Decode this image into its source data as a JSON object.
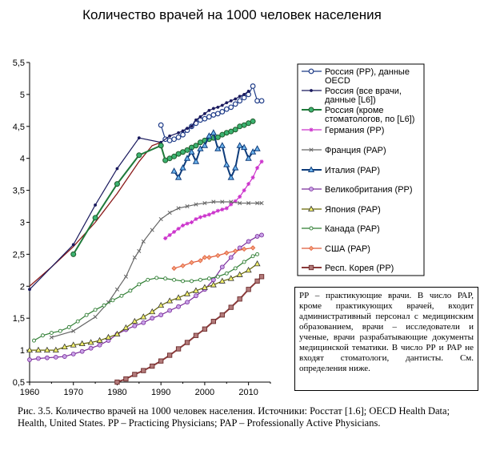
{
  "title": "Количество врачей на 1000 человек населения",
  "note": "РР – практикующие врачи. В число РАР, кроме практикующих врачей, входит административный персонал с медицинским образованием, врачи – исследователи и ученые, врачи разрабатывающие документы медицинской тематики. В число РР и РАР не входят стоматологи, дантисты. См. определения ниже.",
  "caption": "Рис. 3.5. Количество врачей на 1000 человек населения. Источники: Росстат [1.6]; OECD Health Data; Health, United States. PP – Practicing Physicians; PAP – Professionally Active Physicians.",
  "chart_data": {
    "type": "line",
    "xlim": [
      1960,
      2015
    ],
    "ylim": [
      0.5,
      5.5
    ],
    "x_ticks": [
      1960,
      1970,
      1980,
      1990,
      2000,
      2010
    ],
    "y_ticks": [
      "0,5",
      "1",
      "1,5",
      "2",
      "2,5",
      "3",
      "3,5",
      "4",
      "4,5",
      "5",
      "5,5"
    ],
    "grid": false,
    "legend_position": "right",
    "series": [
      {
        "name": "Россия (РР), данные OECD",
        "color": "#1f3c88",
        "marker": "circle-open",
        "points": [
          [
            1990,
            4.52
          ],
          [
            1991,
            4.3
          ],
          [
            1992,
            4.28
          ],
          [
            1993,
            4.3
          ],
          [
            1994,
            4.33
          ],
          [
            1995,
            4.37
          ],
          [
            1996,
            4.44
          ],
          [
            1997,
            4.5
          ],
          [
            1998,
            4.55
          ],
          [
            1999,
            4.6
          ],
          [
            2000,
            4.62
          ],
          [
            2001,
            4.65
          ],
          [
            2002,
            4.68
          ],
          [
            2003,
            4.7
          ],
          [
            2004,
            4.73
          ],
          [
            2005,
            4.77
          ],
          [
            2006,
            4.8
          ],
          [
            2007,
            4.85
          ],
          [
            2008,
            4.9
          ],
          [
            2009,
            4.95
          ],
          [
            2010,
            5.0
          ],
          [
            2011,
            5.13
          ],
          [
            2012,
            4.9
          ],
          [
            2013,
            4.9
          ]
        ]
      },
      {
        "name": "Россия (все врачи, данные [1.6])",
        "color": "#1a1a5e",
        "marker": "dot",
        "points": [
          [
            1960,
            1.95
          ],
          [
            1970,
            2.65
          ],
          [
            1975,
            3.27
          ],
          [
            1980,
            3.84
          ],
          [
            1985,
            4.32
          ],
          [
            1990,
            4.25
          ],
          [
            1992,
            4.35
          ],
          [
            1994,
            4.4
          ],
          [
            1995,
            4.43
          ],
          [
            1996,
            4.47
          ],
          [
            1997,
            4.5
          ],
          [
            1998,
            4.6
          ],
          [
            1999,
            4.65
          ],
          [
            2000,
            4.7
          ],
          [
            2001,
            4.75
          ],
          [
            2002,
            4.78
          ],
          [
            2003,
            4.8
          ],
          [
            2004,
            4.83
          ],
          [
            2005,
            4.87
          ],
          [
            2006,
            4.9
          ],
          [
            2007,
            4.93
          ],
          [
            2008,
            4.97
          ],
          [
            2009,
            5.0
          ],
          [
            2010,
            5.05
          ]
        ]
      },
      {
        "name": "Россия (кроме стоматологов, по [1.6])",
        "color": "#1f7a3a",
        "marker": "circle-green",
        "points": [
          [
            1970,
            2.5
          ],
          [
            1975,
            3.07
          ],
          [
            1980,
            3.6
          ],
          [
            1985,
            4.05
          ],
          [
            1990,
            4.2
          ],
          [
            1991,
            3.97
          ],
          [
            1992,
            4.0
          ],
          [
            1993,
            4.03
          ],
          [
            1994,
            4.07
          ],
          [
            1995,
            4.1
          ],
          [
            1996,
            4.13
          ],
          [
            1997,
            4.17
          ],
          [
            1998,
            4.2
          ],
          [
            1999,
            4.25
          ],
          [
            2000,
            4.28
          ],
          [
            2001,
            4.3
          ],
          [
            2002,
            4.32
          ],
          [
            2003,
            4.33
          ],
          [
            2004,
            4.37
          ],
          [
            2005,
            4.4
          ],
          [
            2006,
            4.42
          ],
          [
            2007,
            4.45
          ],
          [
            2008,
            4.5
          ],
          [
            2009,
            4.52
          ],
          [
            2010,
            4.55
          ],
          [
            2011,
            4.58
          ]
        ]
      },
      {
        "name": "Германия (PP)",
        "color": "#cc33cc",
        "marker": "star",
        "points": [
          [
            1991,
            2.75
          ],
          [
            1992,
            2.8
          ],
          [
            1993,
            2.85
          ],
          [
            1994,
            2.9
          ],
          [
            1995,
            2.95
          ],
          [
            1996,
            2.98
          ],
          [
            1997,
            3.0
          ],
          [
            1998,
            3.05
          ],
          [
            1999,
            3.08
          ],
          [
            2000,
            3.1
          ],
          [
            2001,
            3.12
          ],
          [
            2002,
            3.15
          ],
          [
            2003,
            3.18
          ],
          [
            2004,
            3.2
          ],
          [
            2005,
            3.22
          ],
          [
            2006,
            3.28
          ],
          [
            2007,
            3.33
          ],
          [
            2008,
            3.4
          ],
          [
            2009,
            3.5
          ],
          [
            2010,
            3.6
          ],
          [
            2011,
            3.7
          ],
          [
            2012,
            3.85
          ],
          [
            2013,
            3.95
          ]
        ]
      },
      {
        "name": "Франция (PAP)",
        "color": "#666666",
        "marker": "x",
        "points": [
          [
            1965,
            1.2
          ],
          [
            1970,
            1.3
          ],
          [
            1975,
            1.52
          ],
          [
            1978,
            1.75
          ],
          [
            1980,
            1.95
          ],
          [
            1982,
            2.15
          ],
          [
            1984,
            2.45
          ],
          [
            1985,
            2.55
          ],
          [
            1986,
            2.7
          ],
          [
            1988,
            2.88
          ],
          [
            1990,
            3.05
          ],
          [
            1992,
            3.15
          ],
          [
            1994,
            3.22
          ],
          [
            1996,
            3.25
          ],
          [
            1998,
            3.28
          ],
          [
            2000,
            3.3
          ],
          [
            2002,
            3.32
          ],
          [
            2004,
            3.32
          ],
          [
            2006,
            3.32
          ],
          [
            2008,
            3.3
          ],
          [
            2010,
            3.3
          ],
          [
            2012,
            3.3
          ],
          [
            2013,
            3.3
          ]
        ]
      },
      {
        "name": "Италия (PAP)",
        "color": "#0d3b7a",
        "marker": "triangle-blue",
        "points": [
          [
            1993,
            3.8
          ],
          [
            1994,
            3.7
          ],
          [
            1995,
            3.85
          ],
          [
            1996,
            4.0
          ],
          [
            1997,
            4.1
          ],
          [
            1998,
            3.95
          ],
          [
            1999,
            4.15
          ],
          [
            2000,
            4.2
          ],
          [
            2001,
            4.35
          ],
          [
            2002,
            4.4
          ],
          [
            2003,
            4.15
          ],
          [
            2004,
            4.2
          ],
          [
            2005,
            3.9
          ],
          [
            2006,
            3.7
          ],
          [
            2007,
            3.85
          ],
          [
            2008,
            4.2
          ],
          [
            2009,
            4.17
          ],
          [
            2010,
            4.0
          ],
          [
            2011,
            4.1
          ],
          [
            2012,
            4.15
          ]
        ]
      },
      {
        "name": "Великобритания (PP)",
        "color": "#7b2d9b",
        "marker": "circle-purple",
        "points": [
          [
            1960,
            0.85
          ],
          [
            1962,
            0.87
          ],
          [
            1964,
            0.88
          ],
          [
            1966,
            0.89
          ],
          [
            1968,
            0.9
          ],
          [
            1970,
            0.94
          ],
          [
            1972,
            0.98
          ],
          [
            1974,
            1.03
          ],
          [
            1976,
            1.08
          ],
          [
            1978,
            1.15
          ],
          [
            1980,
            1.25
          ],
          [
            1982,
            1.32
          ],
          [
            1984,
            1.38
          ],
          [
            1986,
            1.43
          ],
          [
            1988,
            1.5
          ],
          [
            1990,
            1.55
          ],
          [
            1992,
            1.62
          ],
          [
            1994,
            1.68
          ],
          [
            1996,
            1.75
          ],
          [
            1998,
            1.85
          ],
          [
            2000,
            1.95
          ],
          [
            2002,
            2.1
          ],
          [
            2004,
            2.3
          ],
          [
            2006,
            2.45
          ],
          [
            2008,
            2.6
          ],
          [
            2010,
            2.7
          ],
          [
            2012,
            2.78
          ],
          [
            2013,
            2.8
          ]
        ]
      },
      {
        "name": "Япония (PAP)",
        "color": "#666600",
        "marker": "triangle-yellow",
        "points": [
          [
            1960,
            1.0
          ],
          [
            1962,
            1.0
          ],
          [
            1964,
            1.0
          ],
          [
            1966,
            1.0
          ],
          [
            1968,
            1.05
          ],
          [
            1970,
            1.08
          ],
          [
            1972,
            1.1
          ],
          [
            1974,
            1.12
          ],
          [
            1976,
            1.15
          ],
          [
            1978,
            1.2
          ],
          [
            1980,
            1.25
          ],
          [
            1982,
            1.35
          ],
          [
            1984,
            1.45
          ],
          [
            1986,
            1.52
          ],
          [
            1988,
            1.6
          ],
          [
            1990,
            1.7
          ],
          [
            1992,
            1.77
          ],
          [
            1994,
            1.82
          ],
          [
            1996,
            1.88
          ],
          [
            1998,
            1.93
          ],
          [
            2000,
            1.98
          ],
          [
            2002,
            2.02
          ],
          [
            2004,
            2.08
          ],
          [
            2006,
            2.12
          ],
          [
            2008,
            2.18
          ],
          [
            2010,
            2.25
          ],
          [
            2012,
            2.35
          ]
        ]
      },
      {
        "name": "Канада (PAP)",
        "color": "#2e7d32",
        "marker": "circle-small",
        "points": [
          [
            1961,
            1.15
          ],
          [
            1963,
            1.23
          ],
          [
            1965,
            1.27
          ],
          [
            1967,
            1.3
          ],
          [
            1969,
            1.36
          ],
          [
            1971,
            1.45
          ],
          [
            1973,
            1.55
          ],
          [
            1975,
            1.63
          ],
          [
            1977,
            1.7
          ],
          [
            1979,
            1.78
          ],
          [
            1981,
            1.85
          ],
          [
            1983,
            1.93
          ],
          [
            1985,
            2.03
          ],
          [
            1987,
            2.1
          ],
          [
            1989,
            2.13
          ],
          [
            1991,
            2.12
          ],
          [
            1993,
            2.1
          ],
          [
            1995,
            2.08
          ],
          [
            1997,
            2.08
          ],
          [
            1999,
            2.1
          ],
          [
            2001,
            2.12
          ],
          [
            2003,
            2.15
          ],
          [
            2005,
            2.2
          ],
          [
            2007,
            2.28
          ],
          [
            2009,
            2.38
          ],
          [
            2011,
            2.47
          ],
          [
            2012,
            2.5
          ]
        ]
      },
      {
        "name": "США (PAP)",
        "color": "#e05a3a",
        "marker": "diamond",
        "points": [
          [
            1993,
            2.28
          ],
          [
            1995,
            2.32
          ],
          [
            1997,
            2.37
          ],
          [
            1999,
            2.4
          ],
          [
            2000,
            2.45
          ],
          [
            2001,
            2.45
          ],
          [
            2003,
            2.48
          ],
          [
            2005,
            2.52
          ],
          [
            2007,
            2.55
          ],
          [
            2009,
            2.58
          ],
          [
            2011,
            2.6
          ]
        ]
      },
      {
        "name": "Респ. Корея (PP)",
        "color": "#8b3a3a",
        "marker": "square",
        "points": [
          [
            1980,
            0.5
          ],
          [
            1982,
            0.55
          ],
          [
            1984,
            0.62
          ],
          [
            1986,
            0.68
          ],
          [
            1988,
            0.75
          ],
          [
            1990,
            0.83
          ],
          [
            1992,
            0.92
          ],
          [
            1994,
            1.02
          ],
          [
            1996,
            1.12
          ],
          [
            1998,
            1.23
          ],
          [
            2000,
            1.33
          ],
          [
            2002,
            1.45
          ],
          [
            2004,
            1.55
          ],
          [
            2006,
            1.67
          ],
          [
            2008,
            1.8
          ],
          [
            2010,
            1.95
          ],
          [
            2012,
            2.08
          ],
          [
            2013,
            2.15
          ]
        ]
      }
    ],
    "fit_curve": {
      "color": "#8b1a1a",
      "points": [
        [
          1960,
          2.0
        ],
        [
          1965,
          2.3
        ],
        [
          1970,
          2.62
        ],
        [
          1975,
          3.0
        ],
        [
          1980,
          3.45
        ],
        [
          1985,
          3.95
        ],
        [
          1988,
          4.2
        ],
        [
          1990,
          4.25
        ]
      ]
    }
  }
}
